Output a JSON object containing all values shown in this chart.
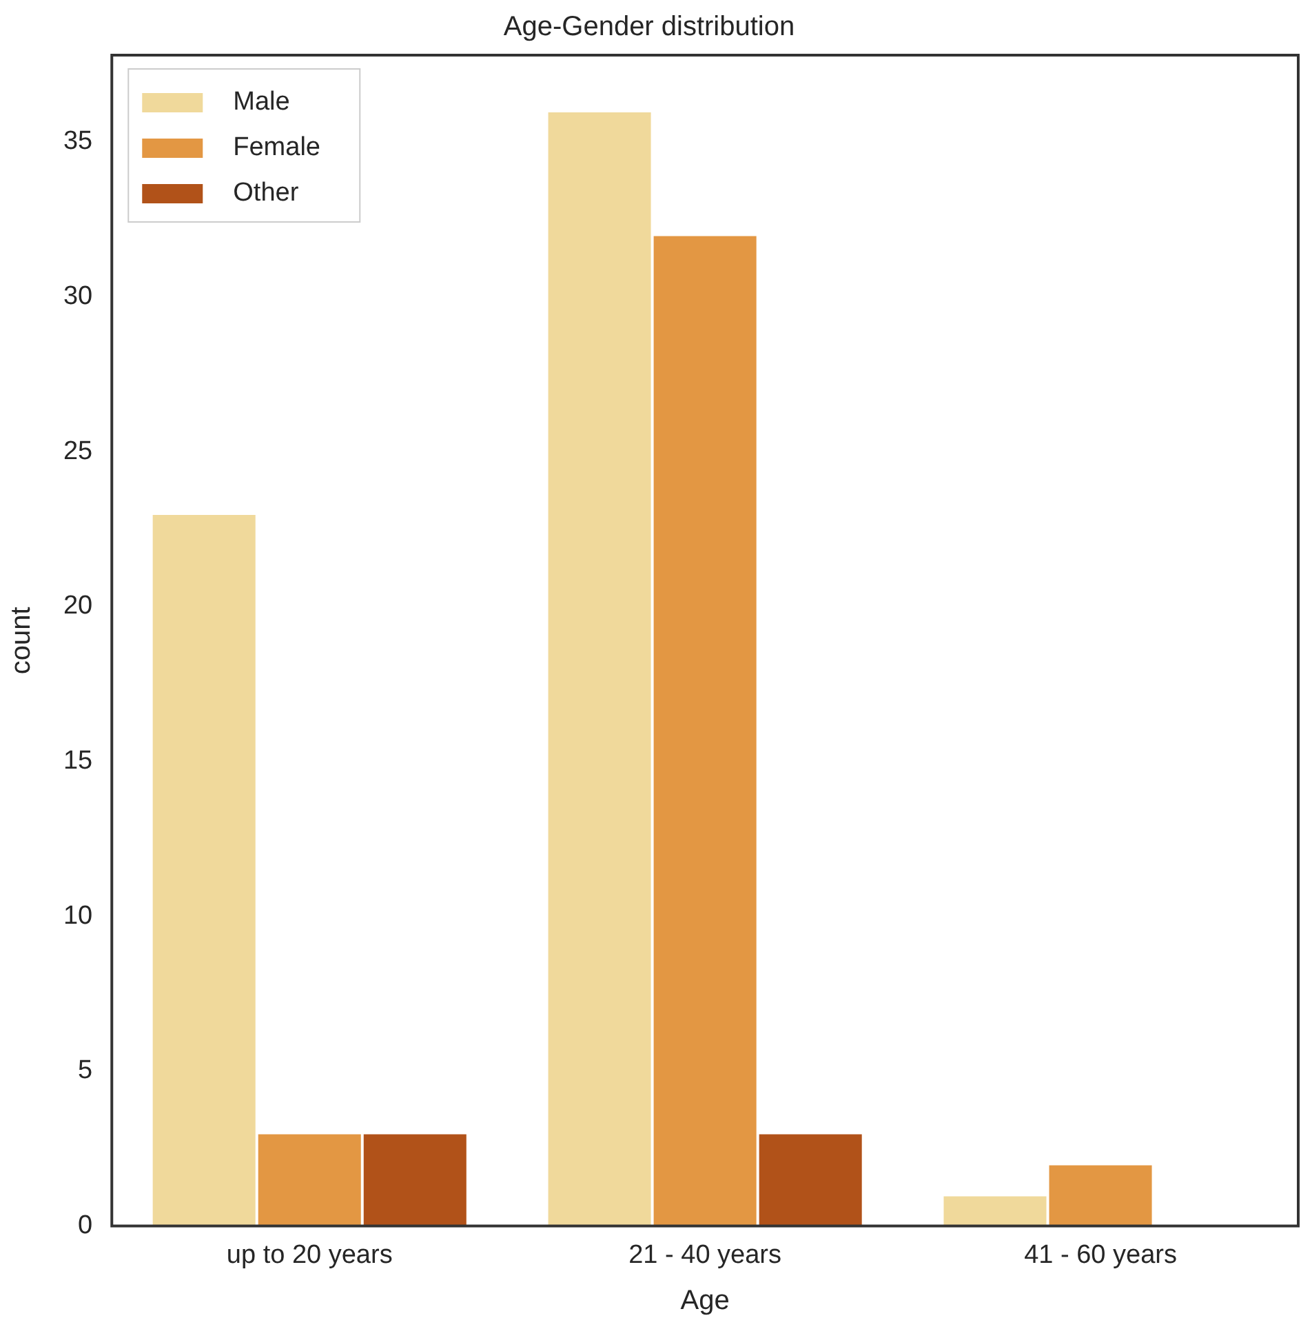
{
  "chart_data": {
    "type": "bar",
    "title": "Age-Gender distribution",
    "xlabel": "Age",
    "ylabel": "count",
    "categories": [
      "up to 20 years",
      "21 - 40 years",
      "41 - 60 years"
    ],
    "series": [
      {
        "name": "Male",
        "color": "#f0d99b",
        "values": [
          23,
          36,
          1
        ]
      },
      {
        "name": "Female",
        "color": "#e39743",
        "values": [
          3,
          32,
          2
        ]
      },
      {
        "name": "Other",
        "color": "#b15219",
        "values": [
          3,
          3,
          0
        ]
      }
    ],
    "ylim": [
      0,
      37.8
    ],
    "yticks": [
      0,
      5,
      10,
      15,
      20,
      25,
      30,
      35
    ],
    "grid": false,
    "legend": "top left"
  }
}
